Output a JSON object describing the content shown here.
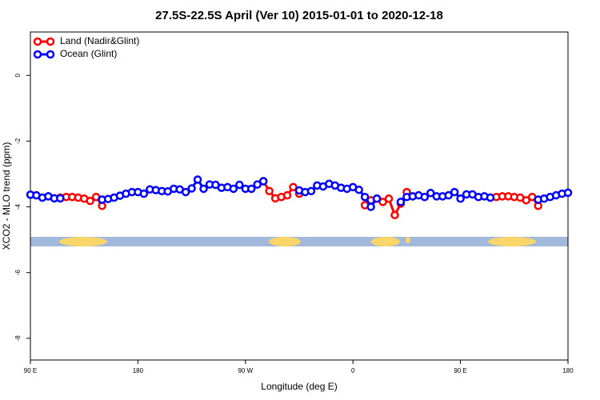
{
  "chart_data": {
    "type": "line",
    "title": "27.5S-22.5S April (Ver 10)   2015-01-01 to 2020-12-18",
    "x_label": "Longitude (deg E)",
    "y_label": "XCO2 - MLO trend (ppm)",
    "x": [
      90,
      95,
      100,
      105,
      110,
      115,
      120,
      125,
      130,
      135,
      140,
      145,
      150,
      155,
      160,
      165,
      170,
      175,
      180,
      185,
      190,
      195,
      200,
      205,
      210,
      215,
      220,
      225,
      230,
      235,
      240,
      245,
      250,
      255,
      260,
      265,
      270,
      275,
      280,
      285,
      290,
      295,
      300,
      305,
      310,
      315,
      320,
      325,
      330,
      335,
      340,
      345,
      350,
      355,
      360,
      365,
      370,
      375,
      380,
      385,
      390,
      395,
      400,
      405,
      410,
      415,
      420,
      425,
      430,
      435,
      440,
      445,
      450,
      455,
      460,
      465,
      470,
      475,
      480,
      485,
      490,
      495,
      500,
      505,
      510,
      515,
      520,
      525,
      530,
      535,
      540
    ],
    "series": [
      {
        "name": "Land (Nadir&Glint)",
        "color": "#ff0000",
        "values": [
          null,
          null,
          null,
          null,
          null,
          -3.72,
          -3.7,
          -3.7,
          -3.72,
          -3.75,
          -3.82,
          -3.7,
          -3.97,
          null,
          null,
          null,
          null,
          null,
          null,
          null,
          null,
          null,
          null,
          null,
          null,
          null,
          null,
          null,
          null,
          null,
          null,
          null,
          null,
          null,
          null,
          null,
          null,
          null,
          null,
          -3.22,
          -3.52,
          -3.74,
          -3.7,
          -3.65,
          -3.4,
          -3.6,
          null,
          null,
          null,
          null,
          null,
          null,
          null,
          null,
          null,
          null,
          -3.95,
          -3.8,
          -3.75,
          -3.85,
          -3.75,
          -4.25,
          -3.9,
          -3.55,
          null,
          null,
          null,
          null,
          null,
          null,
          null,
          null,
          null,
          null,
          null,
          null,
          null,
          -3.72,
          -3.7,
          -3.68,
          -3.68,
          -3.7,
          -3.72,
          -3.8,
          -3.7,
          -3.97,
          null,
          null,
          null,
          null,
          null
        ]
      },
      {
        "name": "Ocean (Glint)",
        "color": "#0000ff",
        "values": [
          -3.63,
          -3.65,
          -3.72,
          -3.68,
          -3.74,
          -3.74,
          null,
          null,
          null,
          null,
          null,
          null,
          -3.78,
          -3.76,
          -3.72,
          -3.66,
          -3.6,
          -3.55,
          -3.55,
          -3.6,
          -3.47,
          -3.49,
          -3.52,
          -3.53,
          -3.45,
          -3.47,
          -3.55,
          -3.44,
          -3.17,
          -3.45,
          -3.32,
          -3.33,
          -3.42,
          -3.4,
          -3.45,
          -3.33,
          -3.45,
          -3.45,
          -3.32,
          -3.22,
          null,
          null,
          null,
          null,
          null,
          -3.5,
          -3.55,
          -3.52,
          -3.35,
          -3.38,
          -3.3,
          -3.35,
          -3.42,
          -3.45,
          -3.4,
          -3.48,
          -3.7,
          -4.0,
          -3.75,
          null,
          null,
          null,
          -3.85,
          -3.7,
          -3.68,
          -3.65,
          -3.7,
          -3.58,
          -3.68,
          -3.68,
          -3.65,
          -3.55,
          -3.75,
          -3.62,
          -3.62,
          -3.7,
          -3.68,
          -3.72,
          null,
          null,
          null,
          null,
          null,
          null,
          null,
          -3.78,
          -3.75,
          -3.7,
          -3.65,
          -3.6,
          -3.57
        ]
      }
    ],
    "xlim": [
      90,
      540
    ],
    "xticks": [
      {
        "value": 90,
        "label": "90 E"
      },
      {
        "value": 180,
        "label": "180"
      },
      {
        "value": 270,
        "label": "90 W"
      },
      {
        "value": 360,
        "label": "0"
      },
      {
        "value": 450,
        "label": "90 E"
      },
      {
        "value": 540,
        "label": "180"
      }
    ],
    "ylim": [
      -8.66,
      1.32
    ],
    "yticks": [
      0,
      -2,
      -4,
      -6,
      -8
    ],
    "legend": "topleft"
  }
}
